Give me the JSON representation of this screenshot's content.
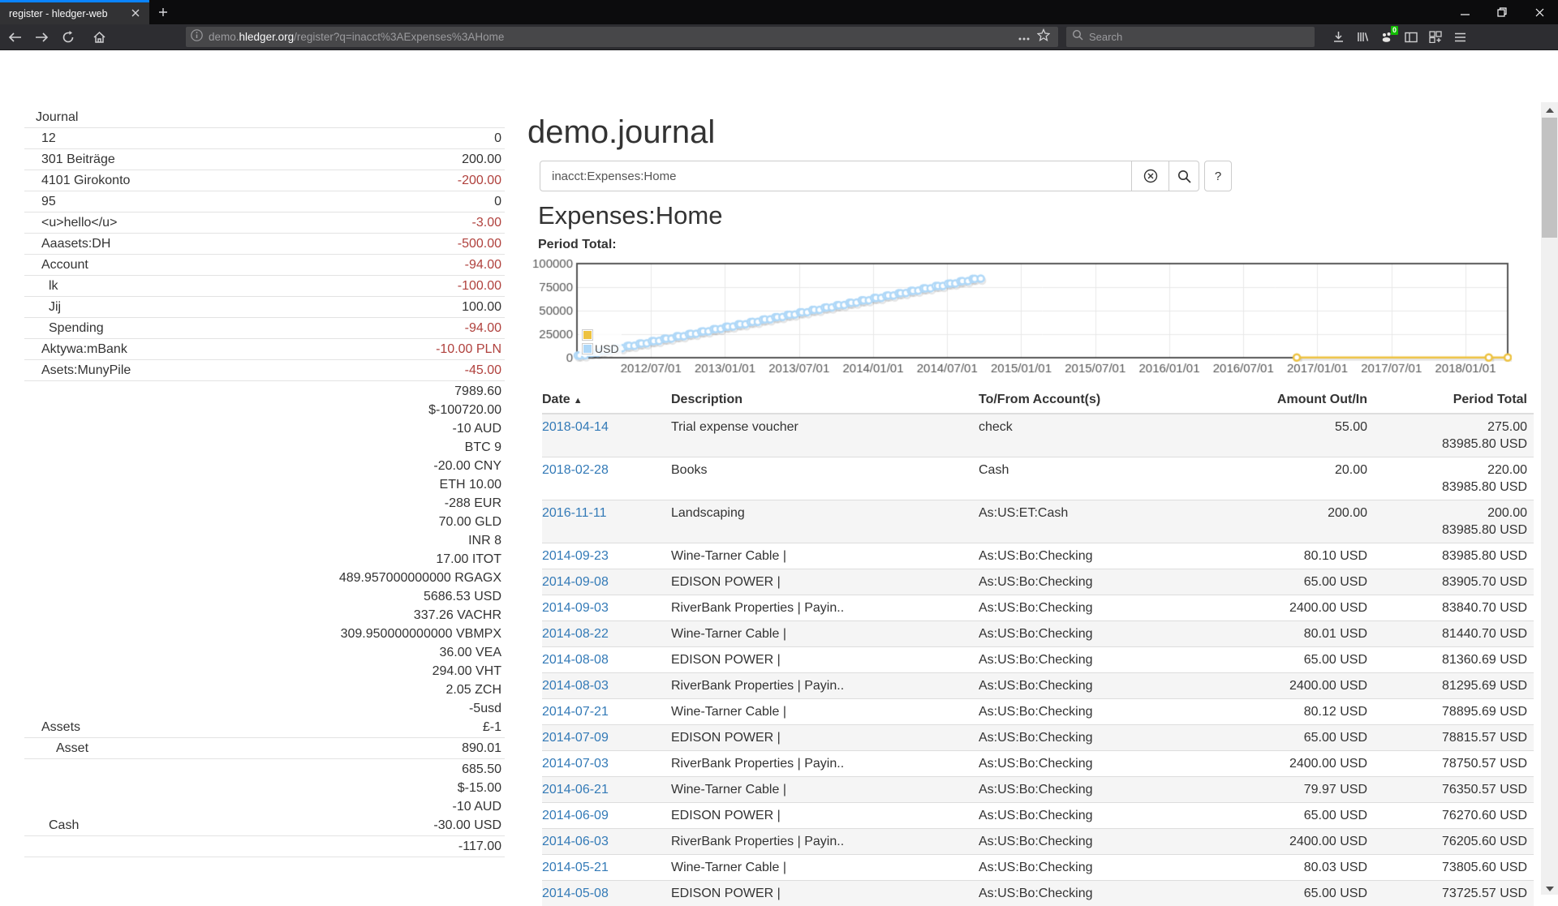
{
  "browser": {
    "tab_title": "register - hledger-web",
    "url_prefix": "demo.",
    "url_domain": "hledger.org",
    "url_path": "/register?q=inacct%3AExpenses%3AHome",
    "search_placeholder": "Search",
    "extension_badge": "0",
    "accent_tab_stripe": "#0a84ff",
    "badge_green": "#12bc00"
  },
  "page": {
    "title": "demo.journal",
    "query_value": "inacct:Expenses:Home",
    "register_heading": "Expenses:Home",
    "chart_label": "Period Total:",
    "help_button_label": "?",
    "link_color": "#337ab7",
    "negative_color": "#b0413d"
  },
  "icons": {
    "clear-icon": "circled-x",
    "search-icon": "magnifier",
    "sort-ascending-icon": "▲",
    "back-icon": "arrow-left",
    "forward-icon": "arrow-right",
    "reload-icon": "circular-arrow",
    "home-icon": "house",
    "info-icon": "circled-i",
    "page-actions-icon": "•••",
    "bookmark-icon": "star-outline",
    "download-icon": "arrow-down-tray",
    "library-icon": "tilted-books",
    "extension-icon": "paw-with-badge",
    "sidebar-icon": "panel",
    "screenshot-icon": "grid-plus",
    "menu-icon": "hamburger"
  },
  "sidebar": {
    "accounts": [
      {
        "name": "Journal",
        "pad": 14,
        "header": true,
        "values": []
      },
      {
        "name": "12",
        "pad": 21,
        "values": [
          {
            "t": "0"
          }
        ]
      },
      {
        "name": "301 Beiträge",
        "pad": 21,
        "values": [
          {
            "t": "200.00"
          }
        ]
      },
      {
        "name": "4101 Girokonto",
        "pad": 21,
        "values": [
          {
            "t": "-200.00",
            "neg": true
          }
        ]
      },
      {
        "name": "95",
        "pad": 21,
        "values": [
          {
            "t": "0"
          }
        ]
      },
      {
        "name": "<u>hello</u>",
        "pad": 21,
        "values": [
          {
            "t": "-3.00",
            "neg": true
          }
        ]
      },
      {
        "name": "Aaasets:DH",
        "pad": 21,
        "values": [
          {
            "t": "-500.00",
            "neg": true
          }
        ]
      },
      {
        "name": "Account",
        "pad": 21,
        "values": [
          {
            "t": "-94.00",
            "neg": true
          }
        ]
      },
      {
        "name": "lk",
        "pad": 30,
        "values": [
          {
            "t": "-100.00",
            "neg": true
          }
        ]
      },
      {
        "name": "Jij",
        "pad": 30,
        "values": [
          {
            "t": "100.00"
          }
        ]
      },
      {
        "name": "Spending",
        "pad": 30,
        "values": [
          {
            "t": "-94.00",
            "neg": true
          }
        ]
      },
      {
        "name": "Aktywa:mBank",
        "pad": 21,
        "values": [
          {
            "t": "-10.00 PLN",
            "neg": true
          }
        ]
      },
      {
        "name": "Asets:MunyPile",
        "pad": 21,
        "values": [
          {
            "t": "-45.00",
            "neg": true
          }
        ]
      },
      {
        "name": "Assets",
        "pad": 21,
        "values": [
          {
            "t": "7989.60"
          },
          {
            "t": "$-100720.00"
          },
          {
            "t": "-10 AUD"
          },
          {
            "t": "BTC 9"
          },
          {
            "t": "-20.00 CNY"
          },
          {
            "t": "ETH 10.00"
          },
          {
            "t": "-288 EUR"
          },
          {
            "t": "70.00 GLD"
          },
          {
            "t": "INR 8"
          },
          {
            "t": "17.00 ITOT"
          },
          {
            "t": "489.957000000000 RGAGX"
          },
          {
            "t": "5686.53 USD"
          },
          {
            "t": "337.26 VACHR"
          },
          {
            "t": "309.950000000000 VBMPX"
          },
          {
            "t": "36.00 VEA"
          },
          {
            "t": "294.00 VHT"
          },
          {
            "t": "2.05 ZCH"
          },
          {
            "t": "-5usd"
          },
          {
            "t": "£-1"
          }
        ]
      },
      {
        "name": "Asset",
        "pad": 39,
        "values": [
          {
            "t": "890.01"
          }
        ]
      },
      {
        "name": "Cash",
        "pad": 30,
        "values": [
          {
            "t": "685.50"
          },
          {
            "t": "$-15.00"
          },
          {
            "t": "-10 AUD"
          },
          {
            "t": "-30.00 USD"
          }
        ]
      },
      {
        "name": "",
        "pad": 21,
        "values": [
          {
            "t": "-117.00"
          }
        ]
      }
    ]
  },
  "table": {
    "headers": [
      "Date",
      "Description",
      "To/From Account(s)",
      "Amount Out/In",
      "Period Total"
    ],
    "rows": [
      {
        "date": "2018-04-14",
        "desc": "Trial expense voucher",
        "acct": "check",
        "amt": "55.00",
        "tot": "275.00",
        "tot2": "83985.80 USD"
      },
      {
        "date": "2018-02-28",
        "desc": "Books",
        "acct": "Cash",
        "amt": "20.00",
        "tot": "220.00",
        "tot2": "83985.80 USD"
      },
      {
        "date": "2016-11-11",
        "desc": "Landscaping",
        "acct": "As:US:ET:Cash",
        "amt": "200.00",
        "tot": "200.00",
        "tot2": "83985.80 USD"
      },
      {
        "date": "2014-09-23",
        "desc": "Wine-Tarner Cable |",
        "acct": "As:US:Bo:Checking",
        "amt": "80.10 USD",
        "tot": "83985.80 USD"
      },
      {
        "date": "2014-09-08",
        "desc": "EDISON POWER |",
        "acct": "As:US:Bo:Checking",
        "amt": "65.00 USD",
        "tot": "83905.70 USD"
      },
      {
        "date": "2014-09-03",
        "desc": "RiverBank Properties | Payin..",
        "acct": "As:US:Bo:Checking",
        "amt": "2400.00 USD",
        "tot": "83840.70 USD"
      },
      {
        "date": "2014-08-22",
        "desc": "Wine-Tarner Cable |",
        "acct": "As:US:Bo:Checking",
        "amt": "80.01 USD",
        "tot": "81440.70 USD"
      },
      {
        "date": "2014-08-08",
        "desc": "EDISON POWER |",
        "acct": "As:US:Bo:Checking",
        "amt": "65.00 USD",
        "tot": "81360.69 USD"
      },
      {
        "date": "2014-08-03",
        "desc": "RiverBank Properties | Payin..",
        "acct": "As:US:Bo:Checking",
        "amt": "2400.00 USD",
        "tot": "81295.69 USD"
      },
      {
        "date": "2014-07-21",
        "desc": "Wine-Tarner Cable |",
        "acct": "As:US:Bo:Checking",
        "amt": "80.12 USD",
        "tot": "78895.69 USD"
      },
      {
        "date": "2014-07-09",
        "desc": "EDISON POWER |",
        "acct": "As:US:Bo:Checking",
        "amt": "65.00 USD",
        "tot": "78815.57 USD"
      },
      {
        "date": "2014-07-03",
        "desc": "RiverBank Properties | Payin..",
        "acct": "As:US:Bo:Checking",
        "amt": "2400.00 USD",
        "tot": "78750.57 USD"
      },
      {
        "date": "2014-06-21",
        "desc": "Wine-Tarner Cable |",
        "acct": "As:US:Bo:Checking",
        "amt": "79.97 USD",
        "tot": "76350.57 USD"
      },
      {
        "date": "2014-06-09",
        "desc": "EDISON POWER |",
        "acct": "As:US:Bo:Checking",
        "amt": "65.00 USD",
        "tot": "76270.60 USD"
      },
      {
        "date": "2014-06-03",
        "desc": "RiverBank Properties | Payin..",
        "acct": "As:US:Bo:Checking",
        "amt": "2400.00 USD",
        "tot": "76205.60 USD"
      },
      {
        "date": "2014-05-21",
        "desc": "Wine-Tarner Cable |",
        "acct": "As:US:Bo:Checking",
        "amt": "80.03 USD",
        "tot": "73805.60 USD"
      },
      {
        "date": "2014-05-08",
        "desc": "EDISON POWER |",
        "acct": "As:US:Bo:Checking",
        "amt": "65.00 USD",
        "tot": "73725.57 USD"
      }
    ]
  },
  "chart_data": {
    "type": "line",
    "title": "Period Total:",
    "x_domain": [
      2012.0,
      2018.285
    ],
    "ylim": [
      0,
      100000
    ],
    "y_ticks": [
      0,
      25000,
      50000,
      75000,
      100000
    ],
    "x_ticks": [
      "2012/07/01",
      "2013/01/01",
      "2013/07/01",
      "2014/01/01",
      "2014/07/01",
      "2015/01/01",
      "2015/07/01",
      "2016/01/01",
      "2016/07/01",
      "2017/01/01",
      "2017/07/01",
      "2018/01/01"
    ],
    "grid": true,
    "legend_position": "bottom-left",
    "legend": [
      {
        "label": "",
        "color": "#edc240"
      },
      {
        "label": "USD",
        "color": "#afd8f8"
      }
    ],
    "series": [
      {
        "name": "",
        "color": "#edc240",
        "points": [
          [
            "2016-11-11",
            200
          ],
          [
            "2018-02-28",
            220
          ],
          [
            "2018-04-14",
            275
          ]
        ]
      },
      {
        "name": "USD",
        "color": "#afd8f8",
        "points": [
          [
            "2012-01-03",
            2400
          ],
          [
            "2012-01-08",
            2465
          ],
          [
            "2012-01-21",
            2545
          ],
          [
            "2012-02-03",
            4945
          ],
          [
            "2012-02-08",
            5010
          ],
          [
            "2012-02-21",
            5090
          ],
          [
            "2012-03-03",
            7490
          ],
          [
            "2012-03-08",
            7555
          ],
          [
            "2012-03-21",
            7635
          ],
          [
            "2012-04-03",
            10035
          ],
          [
            "2012-04-08",
            10100
          ],
          [
            "2012-04-21",
            10180
          ],
          [
            "2012-05-03",
            12580
          ],
          [
            "2012-05-08",
            12645
          ],
          [
            "2012-05-21",
            12725
          ],
          [
            "2012-06-03",
            15125
          ],
          [
            "2012-06-08",
            15190
          ],
          [
            "2012-06-21",
            15270
          ],
          [
            "2012-07-03",
            17670
          ],
          [
            "2012-07-08",
            17735
          ],
          [
            "2012-07-21",
            17815
          ],
          [
            "2012-08-03",
            20215
          ],
          [
            "2012-08-08",
            20280
          ],
          [
            "2012-08-21",
            20360
          ],
          [
            "2012-09-03",
            22760
          ],
          [
            "2012-09-08",
            22825
          ],
          [
            "2012-09-21",
            22905
          ],
          [
            "2012-10-03",
            25305
          ],
          [
            "2012-10-08",
            25370
          ],
          [
            "2012-10-21",
            25450
          ],
          [
            "2012-11-03",
            27850
          ],
          [
            "2012-11-08",
            27915
          ],
          [
            "2012-11-21",
            27995
          ],
          [
            "2012-12-03",
            30395
          ],
          [
            "2012-12-08",
            30460
          ],
          [
            "2012-12-21",
            30540
          ],
          [
            "2013-01-03",
            32940
          ],
          [
            "2013-01-08",
            33005
          ],
          [
            "2013-01-21",
            33085
          ],
          [
            "2013-02-03",
            35485
          ],
          [
            "2013-02-08",
            35550
          ],
          [
            "2013-02-21",
            35630
          ],
          [
            "2013-03-03",
            38030
          ],
          [
            "2013-03-08",
            38095
          ],
          [
            "2013-03-21",
            38175
          ],
          [
            "2013-04-03",
            40575
          ],
          [
            "2013-04-08",
            40640
          ],
          [
            "2013-04-21",
            40720
          ],
          [
            "2013-05-03",
            43120
          ],
          [
            "2013-05-08",
            43185
          ],
          [
            "2013-05-21",
            43265
          ],
          [
            "2013-06-03",
            45665
          ],
          [
            "2013-06-08",
            45730
          ],
          [
            "2013-06-21",
            45810
          ],
          [
            "2013-07-03",
            48210
          ],
          [
            "2013-07-08",
            48275
          ],
          [
            "2013-07-21",
            48355
          ],
          [
            "2013-08-03",
            50755
          ],
          [
            "2013-08-08",
            50820
          ],
          [
            "2013-08-21",
            50900
          ],
          [
            "2013-09-03",
            53300
          ],
          [
            "2013-09-08",
            53365
          ],
          [
            "2013-09-21",
            53445
          ],
          [
            "2013-10-03",
            55845
          ],
          [
            "2013-10-08",
            55910
          ],
          [
            "2013-10-21",
            55990
          ],
          [
            "2013-11-03",
            58390
          ],
          [
            "2013-11-08",
            58455
          ],
          [
            "2013-11-21",
            58535
          ],
          [
            "2013-12-03",
            60935
          ],
          [
            "2013-12-08",
            61000
          ],
          [
            "2013-12-21",
            61080
          ],
          [
            "2014-01-03",
            63480
          ],
          [
            "2014-01-08",
            63545
          ],
          [
            "2014-01-21",
            63625
          ],
          [
            "2014-02-03",
            66025
          ],
          [
            "2014-02-08",
            66090
          ],
          [
            "2014-02-21",
            66170
          ],
          [
            "2014-03-03",
            68570
          ],
          [
            "2014-03-08",
            68635
          ],
          [
            "2014-03-21",
            68715
          ],
          [
            "2014-04-03",
            71115
          ],
          [
            "2014-04-08",
            71180
          ],
          [
            "2014-04-21",
            71260
          ],
          [
            "2014-05-03",
            73660
          ],
          [
            "2014-05-08",
            73725
          ],
          [
            "2014-05-21",
            73805
          ],
          [
            "2014-06-03",
            76205
          ],
          [
            "2014-06-09",
            76270
          ],
          [
            "2014-06-21",
            76350
          ],
          [
            "2014-07-03",
            78750
          ],
          [
            "2014-07-09",
            78815
          ],
          [
            "2014-07-21",
            78895
          ],
          [
            "2014-08-03",
            81295
          ],
          [
            "2014-08-08",
            81360
          ],
          [
            "2014-08-22",
            81440
          ],
          [
            "2014-09-03",
            83840
          ],
          [
            "2014-09-08",
            83905
          ],
          [
            "2014-09-23",
            83985
          ]
        ]
      }
    ]
  }
}
